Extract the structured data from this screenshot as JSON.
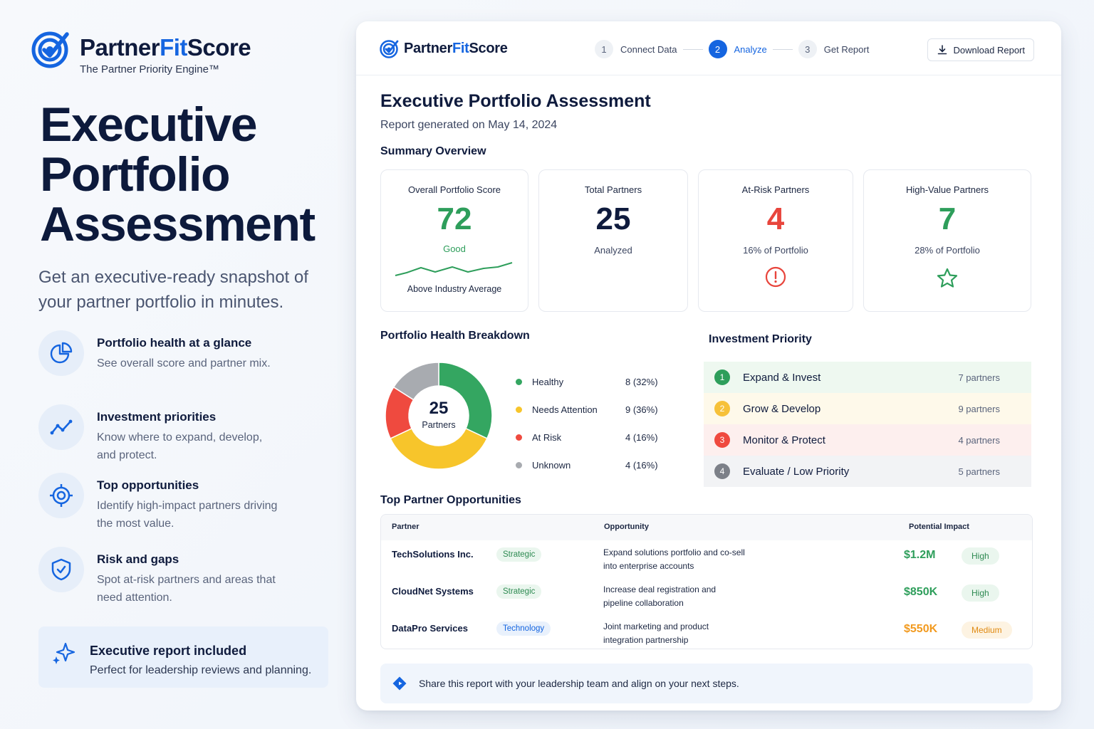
{
  "brand": {
    "name_main": "Partner",
    "name_accent": "Fit",
    "name_end": "Score",
    "tagline": "The Partner Priority Engine™"
  },
  "hero": {
    "title_lines": [
      "Executive",
      "Portfolio",
      "Assessment"
    ],
    "subtitle": "Get an executive-ready snapshot of your partner portfolio in minutes."
  },
  "features": [
    {
      "icon": "pie-chart-icon",
      "title": "Portfolio health at a glance",
      "desc": "See overall score and partner mix."
    },
    {
      "icon": "trend-up-icon",
      "title": "Investment priorities",
      "desc": "Know where to expand, develop, and protect."
    },
    {
      "icon": "target-icon",
      "title": "Top opportunities",
      "desc": "Identify high-impact partners driving the most value."
    },
    {
      "icon": "shield-check-icon",
      "title": "Risk and gaps",
      "desc": "Spot at-risk partners and areas that need attention."
    }
  ],
  "callout": {
    "title": "Executive report included",
    "desc": "Perfect for leadership reviews and planning."
  },
  "topbar": {
    "steps": [
      {
        "num": "1",
        "label": "Connect Data",
        "active": false
      },
      {
        "num": "2",
        "label": "Analyze",
        "active": true
      },
      {
        "num": "3",
        "label": "Get Report",
        "active": false
      }
    ],
    "download_label": "Download Report"
  },
  "report": {
    "title": "Executive Portfolio Assessment",
    "date": "Report generated on May 14, 2024",
    "summary_title": "Summary Overview",
    "health_title": "Portfolio Health Breakdown",
    "priority_title": "Investment Priority",
    "opps_title": "Top Partner Opportunities"
  },
  "stats": {
    "score": {
      "label": "Overall Portfolio Score",
      "value": "72",
      "rating": "Good",
      "note": "Above Industry Average",
      "color": "#2e9e5b"
    },
    "total": {
      "label": "Total Partners",
      "value": "25",
      "sub": "Analyzed",
      "color": "#0f1b3d"
    },
    "risk": {
      "label": "At-Risk Partners",
      "value": "4",
      "sub": "16% of Portfolio",
      "color": "#e8453c"
    },
    "high": {
      "label": "High-Value Partners",
      "value": "7",
      "sub": "28% of Portfolio",
      "color": "#2e9e5b"
    }
  },
  "donut": {
    "center_value": "25",
    "center_label": "Partners",
    "segments": [
      {
        "name": "Healthy",
        "count": 8,
        "display": "8 (32%)",
        "color": "#34a661"
      },
      {
        "name": "Needs Attention",
        "count": 9,
        "display": "9 (36%)",
        "color": "#f7c52b"
      },
      {
        "name": "At Risk",
        "count": 4,
        "display": "4 (16%)",
        "color": "#ef4a3f"
      },
      {
        "name": "Unknown",
        "count": 4,
        "display": "4 (16%)",
        "color": "#a8abb0"
      }
    ]
  },
  "priority": [
    {
      "num": "1",
      "label": "Expand & Invest",
      "count": "7 partners",
      "color": "#2e9e5b",
      "bg": "#eef8f0"
    },
    {
      "num": "2",
      "label": "Grow & Develop",
      "count": "9 partners",
      "color": "#f6c13a",
      "bg": "#fef9ea"
    },
    {
      "num": "3",
      "label": "Monitor & Protect",
      "count": "4 partners",
      "color": "#ef4a3f",
      "bg": "#fdefee"
    },
    {
      "num": "4",
      "label": "Evaluate / Low Priority",
      "count": "5 partners",
      "color": "#7c8088",
      "bg": "#f2f3f5"
    }
  ],
  "table": {
    "headers": {
      "partner": "Partner",
      "opportunity": "Opportunity",
      "impact": "Potential Impact"
    },
    "rows": [
      {
        "partner": "TechSolutions Inc.",
        "tag": "Strategic",
        "opp1": "Expand solutions portfolio and co-sell",
        "opp2": "into enterprise accounts",
        "impact": "$1.2M",
        "level": "High",
        "impact_color": "#2e9e5b"
      },
      {
        "partner": "CloudNet Systems",
        "tag": "Strategic",
        "opp1": "Increase deal registration and",
        "opp2": "pipeline collaboration",
        "impact": "$850K",
        "level": "High",
        "impact_color": "#2e9e5b"
      },
      {
        "partner": "DataPro Services",
        "tag": "Technology",
        "opp1": "Joint marketing and product",
        "opp2": "integration partnership",
        "impact": "$550K",
        "level": "Medium",
        "impact_color": "#f29a1f"
      }
    ]
  },
  "share_text": "Share this report with your leadership team and align on your next steps."
}
